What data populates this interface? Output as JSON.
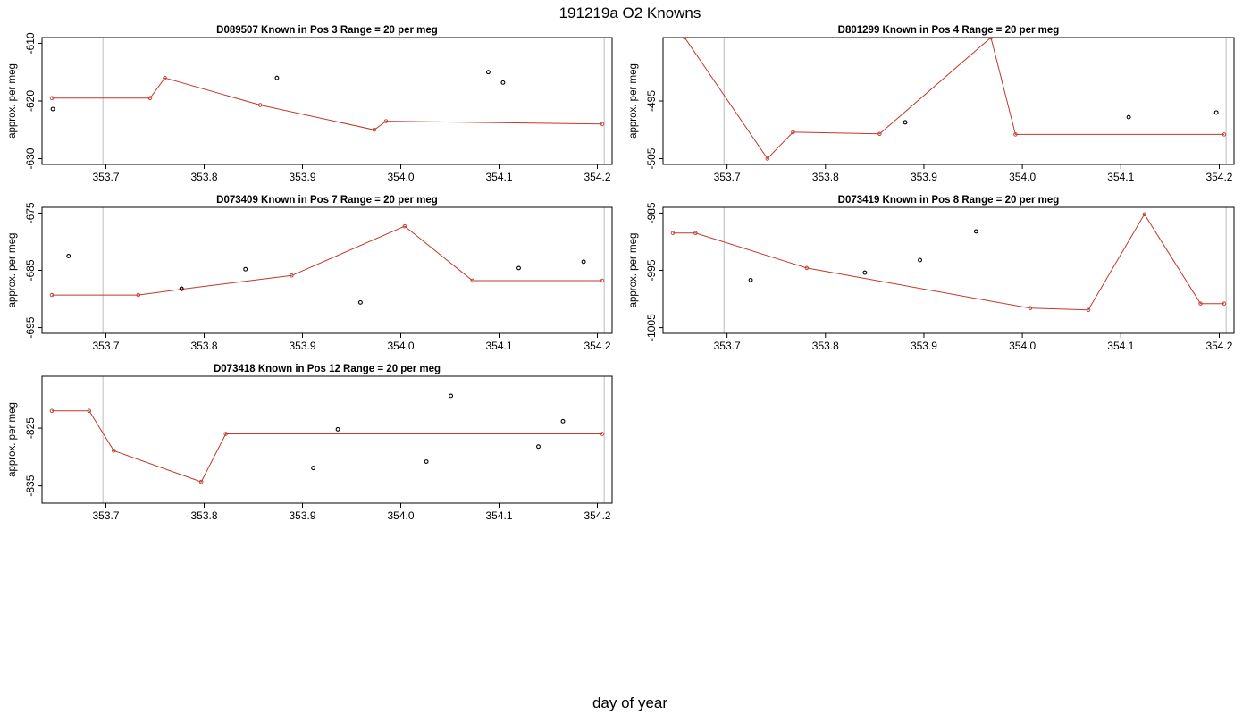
{
  "figure": {
    "title": "191219a   O2 Knowns",
    "xlabel": "day of year"
  },
  "colors": {
    "line": "#c0392b",
    "point": "#000000",
    "frame": "#000000",
    "vline": "#c8c8c8"
  },
  "chart_data": [
    {
      "type": "line",
      "title": "D089507    Known in Pos 3          Range = 20 per meg",
      "ylabel": "approx. per meg",
      "xlim": [
        353.635,
        354.215
      ],
      "ylim": [
        -631,
        -609
      ],
      "xticks": [
        353.7,
        353.8,
        353.9,
        354.0,
        354.1,
        354.2
      ],
      "xtick_labels": [
        "353.7",
        "353.8",
        "353.9",
        "354.0",
        "354.1",
        "354.2"
      ],
      "yticks": [
        -610,
        -620,
        -630
      ],
      "ytick_labels": [
        "-610",
        "-620",
        "-630"
      ],
      "vlines": [
        353.697,
        354.207
      ],
      "series": [
        {
          "kind": "line",
          "x": [
            353.645,
            353.745,
            353.76,
            353.857,
            353.973,
            353.985,
            354.205
          ],
          "y": [
            -619.5,
            -619.5,
            -616.0,
            -620.7,
            -625.0,
            -623.5,
            -624.0
          ]
        },
        {
          "kind": "points",
          "x": [
            353.646,
            353.874,
            354.089,
            354.104
          ],
          "y": [
            -621.4,
            -616.0,
            -615.0,
            -616.8
          ]
        }
      ]
    },
    {
      "type": "line",
      "title": "D801299    Known in Pos 4          Range = 20 per meg",
      "ylabel": "approx. per meg",
      "xlim": [
        353.635,
        354.215
      ],
      "ylim": [
        -506,
        -484
      ],
      "xticks": [
        353.7,
        353.8,
        353.9,
        354.0,
        354.1,
        354.2
      ],
      "xtick_labels": [
        "353.7",
        "353.8",
        "353.9",
        "354.0",
        "354.1",
        "354.2"
      ],
      "yticks": [
        -495,
        -505
      ],
      "ytick_labels": [
        "-495",
        "-505"
      ],
      "vlines": [
        353.697,
        354.207
      ],
      "series": [
        {
          "kind": "line",
          "x": [
            353.657,
            353.741,
            353.767,
            353.855,
            353.968,
            353.993,
            354.205
          ],
          "y": [
            -484.0,
            -505.0,
            -500.4,
            -500.7,
            -484.0,
            -500.8,
            -500.8
          ]
        },
        {
          "kind": "points",
          "x": [
            353.881,
            354.108,
            354.197
          ],
          "y": [
            -498.7,
            -497.8,
            -497.0
          ]
        }
      ]
    },
    {
      "type": "line",
      "title": "D073409    Known in Pos 7          Range = 20 per meg",
      "ylabel": "approx. per meg",
      "xlim": [
        353.635,
        354.215
      ],
      "ylim": [
        -696,
        -674
      ],
      "xticks": [
        353.7,
        353.8,
        353.9,
        354.0,
        354.1,
        354.2
      ],
      "xtick_labels": [
        "353.7",
        "353.8",
        "353.9",
        "354.0",
        "354.1",
        "354.2"
      ],
      "yticks": [
        -675,
        -685,
        -695
      ],
      "ytick_labels": [
        "-675",
        "-685",
        "-695"
      ],
      "vlines": [
        353.697,
        354.207
      ],
      "series": [
        {
          "kind": "line",
          "x": [
            353.645,
            353.733,
            353.777,
            353.889,
            354.004,
            354.073,
            354.205
          ],
          "y": [
            -689.3,
            -689.3,
            -688.3,
            -685.9,
            -677.3,
            -686.8,
            -686.8
          ]
        },
        {
          "kind": "points",
          "x": [
            353.662,
            353.777,
            353.842,
            353.959,
            354.12,
            354.186
          ],
          "y": [
            -682.5,
            -688.2,
            -684.8,
            -690.6,
            -684.6,
            -683.5
          ]
        }
      ]
    },
    {
      "type": "line",
      "title": "D073419    Known in Pos 8          Range = 20 per meg",
      "ylabel": "approx. per meg",
      "xlim": [
        353.635,
        354.215
      ],
      "ylim": [
        -1006,
        -984
      ],
      "xticks": [
        353.7,
        353.8,
        353.9,
        354.0,
        354.1,
        354.2
      ],
      "xtick_labels": [
        "353.7",
        "353.8",
        "353.9",
        "354.0",
        "354.1",
        "354.2"
      ],
      "yticks": [
        -985,
        -995,
        -1005
      ],
      "ytick_labels": [
        "-985",
        "-995",
        "-1005"
      ],
      "vlines": [
        353.697,
        354.207
      ],
      "series": [
        {
          "kind": "line",
          "x": [
            353.645,
            353.668,
            353.781,
            354.008,
            354.067,
            354.124,
            354.181,
            354.205
          ],
          "y": [
            -988.5,
            -988.5,
            -994.6,
            -1001.6,
            -1001.9,
            -985.2,
            -1000.8,
            -1000.8
          ]
        },
        {
          "kind": "points",
          "x": [
            353.724,
            353.84,
            353.896,
            353.953
          ],
          "y": [
            -996.7,
            -995.4,
            -993.2,
            -988.2
          ]
        }
      ]
    },
    {
      "type": "line",
      "title": "D073418    Known in Pos 12          Range = 20 per meg",
      "ylabel": "approx. per meg",
      "xlim": [
        353.635,
        354.215
      ],
      "ylim": [
        -838,
        -816
      ],
      "xticks": [
        353.7,
        353.8,
        353.9,
        354.0,
        354.1,
        354.2
      ],
      "xtick_labels": [
        "353.7",
        "353.8",
        "353.9",
        "354.0",
        "354.1",
        "354.2"
      ],
      "yticks": [
        -825,
        -835
      ],
      "ytick_labels": [
        "-825",
        "-835"
      ],
      "vlines": [
        353.697,
        354.207
      ],
      "series": [
        {
          "kind": "line",
          "x": [
            353.645,
            353.683,
            353.708,
            353.797,
            353.822,
            354.205
          ],
          "y": [
            -822.0,
            -822.0,
            -828.9,
            -834.3,
            -826.0,
            -826.0
          ]
        },
        {
          "kind": "points",
          "x": [
            353.911,
            353.936,
            354.026,
            354.051,
            354.14,
            354.165
          ],
          "y": [
            -831.9,
            -825.2,
            -830.8,
            -819.4,
            -828.2,
            -823.8
          ]
        }
      ]
    }
  ]
}
